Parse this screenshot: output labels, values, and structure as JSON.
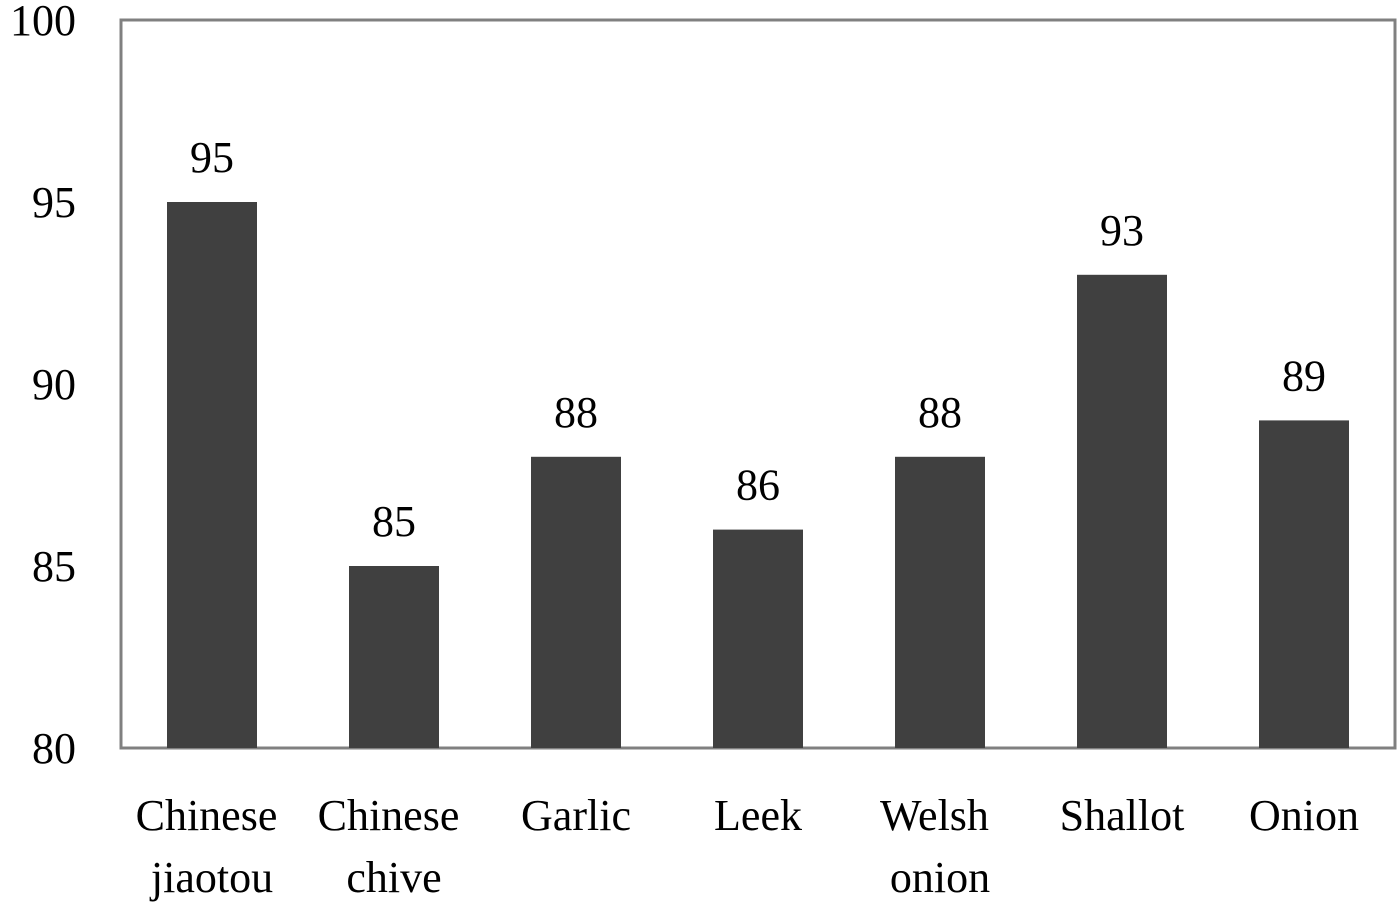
{
  "chart_data": {
    "type": "bar",
    "categories": [
      "Chinese jiaotou",
      "Chinese chive",
      "Garlic",
      "Leek",
      "Welsh onion",
      "Shallot",
      "Onion"
    ],
    "values": [
      95,
      85,
      88,
      86,
      88,
      93,
      89
    ],
    "color": "#404040",
    "ylim": [
      80,
      100
    ],
    "yticks": [
      80,
      85,
      90,
      95,
      100
    ],
    "grid": false
  }
}
